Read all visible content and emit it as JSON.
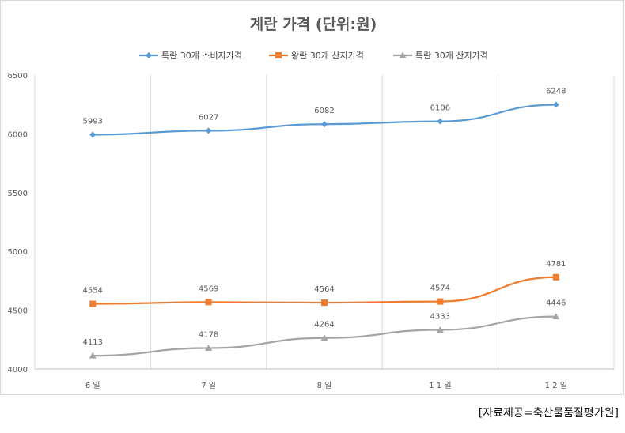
{
  "chart_data": {
    "type": "line",
    "title": "계란 가격 (단위:원)",
    "categories": [
      "6 일",
      "7 일",
      "8 일",
      "1 1 일",
      "1 2 일"
    ],
    "ylim": [
      4000,
      6500
    ],
    "yticks": [
      4000,
      4500,
      5000,
      5500,
      6000,
      6500
    ],
    "grid": "vertical",
    "legend_position": "top",
    "series": [
      {
        "name": "특란 30개 소비자가격",
        "values": [
          5993,
          6027,
          6082,
          6106,
          6248
        ],
        "color": "#5B9BD5",
        "marker": "diamond"
      },
      {
        "name": "왕란 30개 산지가격",
        "values": [
          4554,
          4569,
          4564,
          4574,
          4781
        ],
        "color": "#ED7D31",
        "marker": "square"
      },
      {
        "name": "특란 30개 산지가격",
        "values": [
          4113,
          4178,
          4264,
          4333,
          4446
        ],
        "color": "#A5A5A5",
        "marker": "triangle"
      }
    ]
  },
  "source_note": "[자료제공=축산물품질평가원]"
}
